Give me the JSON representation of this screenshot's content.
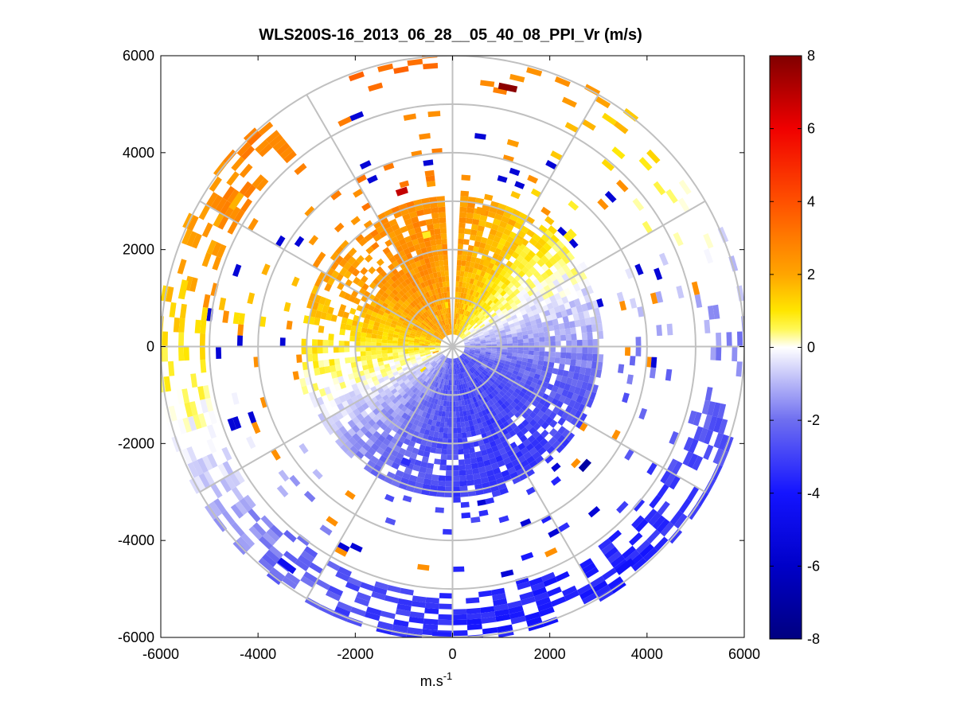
{
  "chart_data": {
    "type": "heatmap",
    "subtype": "polar-ppi",
    "title": "WLS200S-16_2013_06_28__05_40_08_PPI_Vr (m/s)",
    "xlabel": "m.s",
    "xlabel_superscript": "-1",
    "ylabel": "",
    "xlim": [
      -6000,
      6000
    ],
    "ylim": [
      -6000,
      6000
    ],
    "xticks": [
      -6000,
      -4000,
      -2000,
      0,
      2000,
      4000,
      6000
    ],
    "yticks": [
      -6000,
      -4000,
      -2000,
      0,
      2000,
      4000,
      6000
    ],
    "xtick_labels": [
      "-6000",
      "-4000",
      "-2000",
      "0",
      "2000",
      "4000",
      "6000"
    ],
    "ytick_labels": [
      "6000",
      "4000",
      "2000",
      "0",
      "-2000",
      "-4000",
      "-6000"
    ],
    "range_rings": [
      1000,
      2000,
      3000,
      4000,
      5000,
      6000
    ],
    "spoke_angles_deg": [
      0,
      30,
      60,
      90,
      120,
      150,
      180,
      210,
      240,
      270,
      300,
      330
    ],
    "colorbar": {
      "min": -8,
      "max": 8,
      "ticks": [
        8,
        6,
        4,
        2,
        0,
        -2,
        -4,
        -6,
        -8
      ],
      "tick_labels": [
        "8",
        "6",
        "4",
        "2",
        "0",
        "-2",
        "-4",
        "-6",
        "-8"
      ],
      "colormap": "blue-white-yellow-red"
    },
    "field_summary": {
      "north_west_quadrant_near": 1.2,
      "north_sector_mid_range": 1.0,
      "east_south_sector": -2.5,
      "south_outer_ring": -3.5,
      "max_velocity": 7.8,
      "min_velocity": -7.5
    },
    "cells": [
      {
        "r": 300,
        "az": 250,
        "v": 2.0
      },
      {
        "r": 500,
        "az": 270,
        "v": 1.8
      },
      {
        "r": 400,
        "az": 300,
        "v": 1.6
      },
      {
        "r": 600,
        "az": 330,
        "v": 1.2
      },
      {
        "r": 800,
        "az": 350,
        "v": 1.0
      },
      {
        "r": 700,
        "az": 230,
        "v": 1.1
      },
      {
        "r": 300,
        "az": 90,
        "v": -1.0
      },
      {
        "r": 700,
        "az": 120,
        "v": -1.5
      },
      {
        "r": 1000,
        "az": 150,
        "v": -2.2
      },
      {
        "r": 1500,
        "az": 180,
        "v": -2.8
      },
      {
        "r": 2000,
        "az": 170,
        "v": -3.2
      },
      {
        "r": 2500,
        "az": 200,
        "v": -3.5
      },
      {
        "r": 1800,
        "az": 20,
        "v": 1.6
      },
      {
        "r": 2500,
        "az": 30,
        "v": 1.4
      },
      {
        "r": 2300,
        "az": 345,
        "v": 0.8
      },
      {
        "r": 2800,
        "az": 10,
        "v": 2.2
      },
      {
        "r": 5300,
        "az": 302,
        "v": 1.8
      },
      {
        "r": 5600,
        "az": 280,
        "v": 1.2
      },
      {
        "r": 5400,
        "az": 10,
        "v": 7.8
      },
      {
        "r": 3300,
        "az": 340,
        "v": 6.8
      },
      {
        "r": 5900,
        "az": 180,
        "v": -3.8
      },
      {
        "r": 5700,
        "az": 140,
        "v": -4.2
      },
      {
        "r": 5600,
        "az": 215,
        "v": -4.6
      },
      {
        "r": 3600,
        "az": 130,
        "v": -7.0
      }
    ]
  }
}
